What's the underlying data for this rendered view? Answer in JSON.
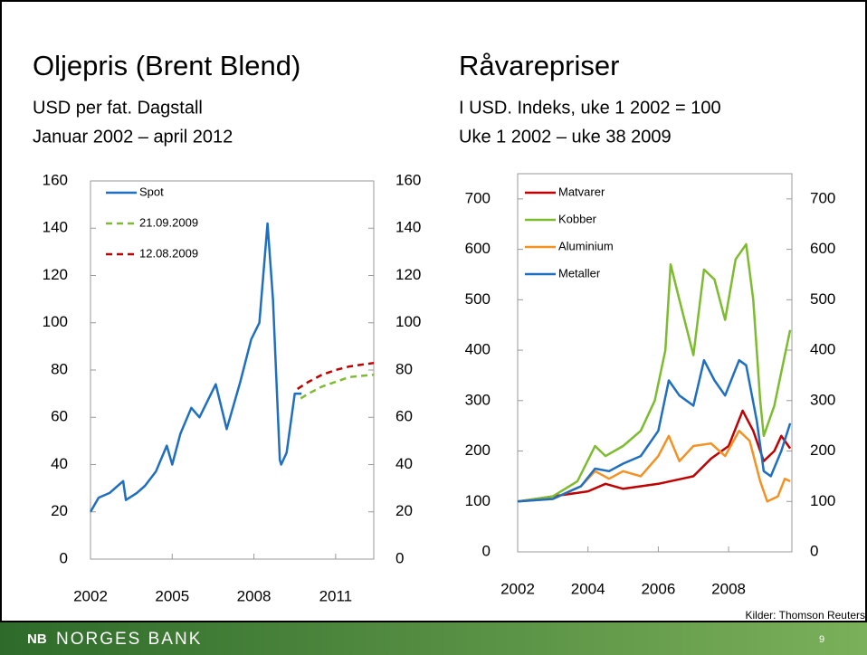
{
  "chart_data": [
    {
      "type": "line",
      "title": "Oljepris (Brent Blend)",
      "subtitle": [
        "USD per fat. Dagstall",
        "Januar 2002 – april 2012"
      ],
      "xlim": [
        2002,
        2012.4
      ],
      "xticks": [
        2002,
        2005,
        2008,
        2011
      ],
      "ylim": [
        0,
        160
      ],
      "yticks": [
        0,
        20,
        40,
        60,
        80,
        100,
        120,
        140,
        160
      ],
      "right_axis": true,
      "grid": false,
      "legend": "upper-left",
      "series": [
        {
          "name": "Spot",
          "color": "#1f6fc0",
          "style": "solid",
          "x": [
            2002.0,
            2002.3,
            2002.7,
            2003.0,
            2003.2,
            2003.3,
            2003.7,
            2004.0,
            2004.4,
            2004.8,
            2005.0,
            2005.3,
            2005.7,
            2006.0,
            2006.6,
            2007.0,
            2007.5,
            2007.9,
            2008.2,
            2008.5,
            2008.7,
            2008.95,
            2009.0,
            2009.2,
            2009.5,
            2009.75
          ],
          "values": [
            20,
            26,
            28,
            31,
            33,
            25,
            28,
            31,
            37,
            48,
            40,
            53,
            64,
            60,
            74,
            55,
            75,
            93,
            100,
            142,
            110,
            42,
            40,
            45,
            70,
            70
          ]
        },
        {
          "name": "21.09.2009",
          "color": "#7dbb2f",
          "style": "dashed",
          "x": [
            2009.72,
            2010.0,
            2010.5,
            2011.0,
            2011.5,
            2012.4
          ],
          "values": [
            68,
            70,
            73,
            75,
            77,
            78
          ]
        },
        {
          "name": "12.08.2009",
          "color": "#c00000",
          "style": "dashed",
          "x": [
            2009.6,
            2010.0,
            2010.5,
            2011.0,
            2011.5,
            2012.4
          ],
          "values": [
            72,
            75,
            78,
            80,
            81.5,
            83
          ]
        }
      ]
    },
    {
      "type": "line",
      "title": "Råvarepriser",
      "subtitle": [
        "I USD. Indeks, uke 1 2002 = 100",
        "Uke 1 2002 – uke 38 2009"
      ],
      "xlim": [
        2002,
        2009.8
      ],
      "xticks": [
        2002,
        2004,
        2006,
        2008
      ],
      "ylim": [
        0,
        750
      ],
      "yticks": [
        0,
        100,
        200,
        300,
        400,
        500,
        600,
        700
      ],
      "right_axis": true,
      "grid": false,
      "legend": "upper-left",
      "series": [
        {
          "name": "Matvarer",
          "color": "#c00000",
          "style": "solid",
          "x": [
            2002,
            2003,
            2004,
            2004.5,
            2005,
            2006,
            2007,
            2007.5,
            2008,
            2008.4,
            2008.7,
            2009,
            2009.3,
            2009.5,
            2009.75
          ],
          "values": [
            100,
            110,
            120,
            135,
            125,
            135,
            150,
            185,
            210,
            280,
            240,
            180,
            200,
            230,
            205
          ]
        },
        {
          "name": "Kobber",
          "color": "#7dbb2f",
          "style": "solid",
          "x": [
            2002,
            2003,
            2003.7,
            2004.2,
            2004.5,
            2005,
            2005.5,
            2005.9,
            2006.2,
            2006.35,
            2006.6,
            2007.0,
            2007.3,
            2007.6,
            2007.9,
            2008.2,
            2008.5,
            2008.7,
            2008.9,
            2009.0,
            2009.3,
            2009.6,
            2009.75
          ],
          "values": [
            100,
            110,
            140,
            210,
            190,
            210,
            240,
            300,
            400,
            570,
            500,
            390,
            560,
            540,
            460,
            580,
            610,
            500,
            300,
            230,
            290,
            390,
            440
          ]
        },
        {
          "name": "Aluminium",
          "color": "#f39223",
          "style": "solid",
          "x": [
            2002,
            2003,
            2003.8,
            2004.2,
            2004.6,
            2005,
            2005.5,
            2006,
            2006.3,
            2006.6,
            2007,
            2007.5,
            2007.9,
            2008.3,
            2008.6,
            2008.9,
            2009.1,
            2009.4,
            2009.6,
            2009.75
          ],
          "values": [
            100,
            105,
            130,
            160,
            145,
            160,
            150,
            190,
            230,
            180,
            210,
            215,
            190,
            240,
            220,
            140,
            100,
            110,
            145,
            140
          ]
        },
        {
          "name": "Metaller",
          "color": "#1f6fc0",
          "style": "solid",
          "x": [
            2002,
            2003,
            2003.8,
            2004.2,
            2004.6,
            2005,
            2005.5,
            2006,
            2006.3,
            2006.6,
            2007,
            2007.3,
            2007.6,
            2007.9,
            2008.3,
            2008.5,
            2008.8,
            2009.0,
            2009.2,
            2009.5,
            2009.75
          ],
          "values": [
            100,
            105,
            130,
            165,
            160,
            175,
            190,
            240,
            340,
            310,
            290,
            380,
            340,
            310,
            380,
            370,
            260,
            160,
            150,
            200,
            255
          ]
        }
      ]
    }
  ],
  "source": "Kilder: Thomson Reuters",
  "footer": {
    "logo": "NB",
    "name": "NORGES BANK",
    "page": "9"
  }
}
